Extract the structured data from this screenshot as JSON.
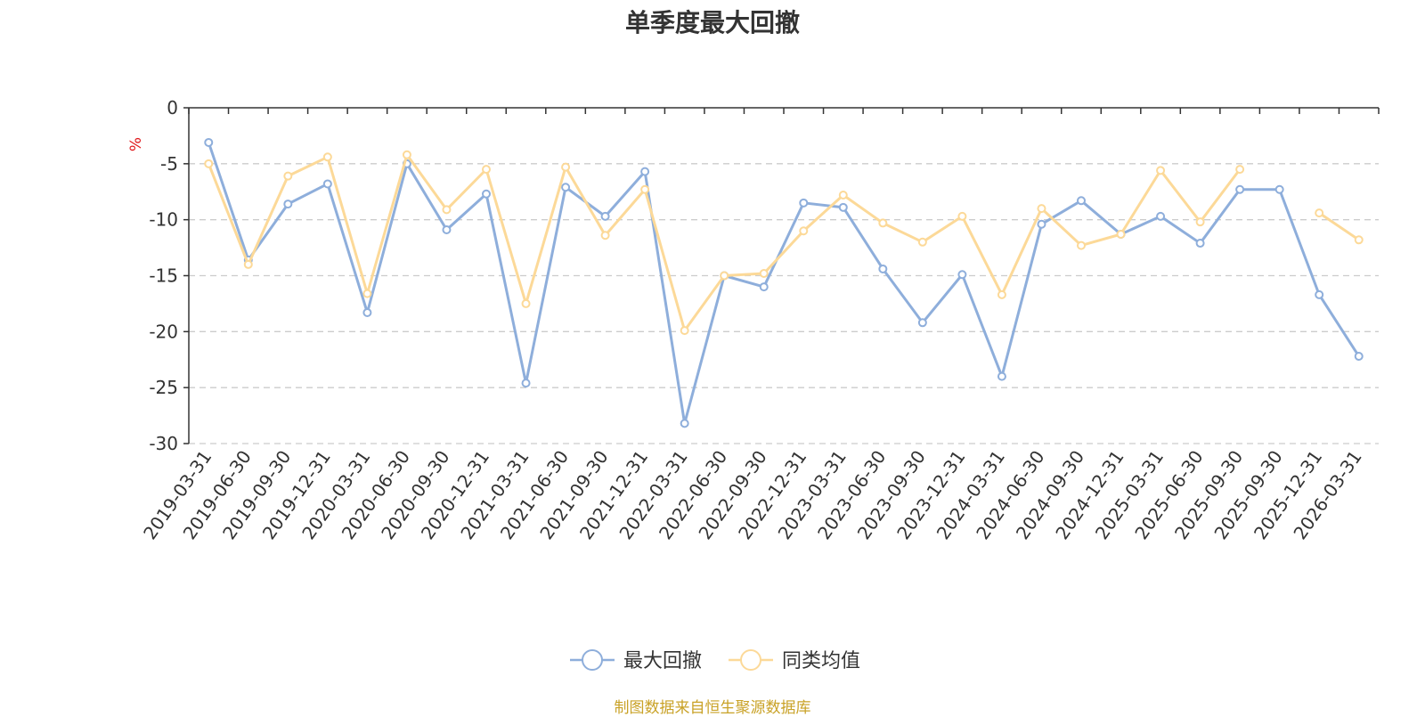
{
  "chart_data": {
    "type": "line",
    "title": "单季度最大回撤",
    "ylabel": "%",
    "ylim": [
      -30,
      0
    ],
    "yticks": [
      0,
      -5,
      -10,
      -15,
      -20,
      -25,
      -30
    ],
    "grid": "horizontal-dashed",
    "legend_position": "bottom-center",
    "x": [
      "2019-03-31",
      "2019-06-30",
      "2019-09-30",
      "2019-12-31",
      "2020-03-31",
      "2020-06-30",
      "2020-09-30",
      "2020-12-31",
      "2021-03-31",
      "2021-06-30",
      "2021-09-30",
      "2021-12-31",
      "2022-03-31",
      "2022-06-30",
      "2022-09-30",
      "2022-12-31",
      "2023-03-31",
      "2023-06-30",
      "2023-09-30",
      "2023-12-31",
      "2024-03-31",
      "2024-06-30",
      "2024-09-30",
      "2024-12-31",
      "2025-03-31",
      "2025-06-30",
      "2025-09-30",
      "2025-09-30",
      "2025-12-31",
      "2026-03-31"
    ],
    "series": [
      {
        "name": "最大回撤",
        "color": "#8eaedb",
        "values": [
          -3.1,
          -13.6,
          -8.6,
          -6.8,
          -18.3,
          -5.0,
          -10.9,
          -7.7,
          -24.6,
          -7.1,
          -9.7,
          -5.7,
          -28.2,
          -15.0,
          -16.0,
          -8.5,
          -8.9,
          -14.4,
          -19.2,
          -14.9,
          -24.0,
          -10.4,
          -8.3,
          -11.3,
          -9.7,
          -12.1,
          -7.3,
          -7.3,
          -16.7,
          -22.2
        ]
      },
      {
        "name": "同类均值",
        "color": "#fcd998",
        "values": [
          -5.0,
          -14.0,
          -6.1,
          -4.4,
          -16.6,
          -4.2,
          -9.1,
          -5.5,
          -17.5,
          -5.3,
          -11.4,
          -7.3,
          -19.9,
          -15.0,
          -14.8,
          -11.0,
          -7.8,
          -10.3,
          -12.0,
          -9.7,
          -16.7,
          -9.0,
          -12.3,
          -11.3,
          -5.6,
          -10.2,
          -5.5,
          null,
          -9.4,
          -11.8
        ]
      }
    ]
  },
  "source_note": "制图数据来自恒生聚源数据库"
}
